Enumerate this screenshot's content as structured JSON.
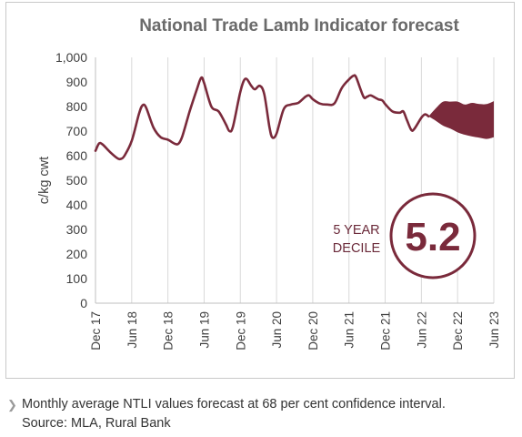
{
  "chart_data": {
    "type": "area",
    "title": "National Trade Lamb Indicator forecast",
    "ylabel": "c/kg cwt",
    "xlabel": "",
    "ylim": [
      0,
      1000
    ],
    "y_ticks": [
      "0",
      "100",
      "200",
      "300",
      "400",
      "500",
      "600",
      "700",
      "800",
      "900",
      "1,000"
    ],
    "x_ticks": [
      "Dec 17",
      "Jun 18",
      "Dec 18",
      "Jun 19",
      "Dec 19",
      "Jun 20",
      "Dec 20",
      "Jun 21",
      "Dec 21",
      "Jun 22",
      "Dec 22",
      "Jun 23"
    ],
    "grid": "vertical",
    "line_color": "#7a2a3b",
    "band_color": "#7a2a3b",
    "series": [
      {
        "values": [
          {
            "x": 0,
            "y": 620
          },
          {
            "x": 0.5,
            "y": 650
          },
          {
            "x": 1,
            "y": 645
          },
          {
            "x": 2,
            "y": 615
          },
          {
            "x": 3,
            "y": 590
          },
          {
            "x": 3.5,
            "y": 587
          },
          {
            "x": 4,
            "y": 600
          },
          {
            "x": 5,
            "y": 660
          },
          {
            "x": 6,
            "y": 770
          },
          {
            "x": 6.5,
            "y": 805
          },
          {
            "x": 7,
            "y": 795
          },
          {
            "x": 8,
            "y": 715
          },
          {
            "x": 9,
            "y": 675
          },
          {
            "x": 10,
            "y": 665
          },
          {
            "x": 11,
            "y": 648
          },
          {
            "x": 11.5,
            "y": 650
          },
          {
            "x": 12,
            "y": 680
          },
          {
            "x": 13,
            "y": 780
          },
          {
            "x": 14,
            "y": 870
          },
          {
            "x": 14.6,
            "y": 917
          },
          {
            "x": 15,
            "y": 895
          },
          {
            "x": 16,
            "y": 800
          },
          {
            "x": 17,
            "y": 780
          },
          {
            "x": 18,
            "y": 728
          },
          {
            "x": 18.5,
            "y": 700
          },
          {
            "x": 19,
            "y": 720
          },
          {
            "x": 20,
            "y": 860
          },
          {
            "x": 20.7,
            "y": 913
          },
          {
            "x": 21.5,
            "y": 885
          },
          {
            "x": 22,
            "y": 870
          },
          {
            "x": 22.7,
            "y": 884
          },
          {
            "x": 23.3,
            "y": 850
          },
          {
            "x": 24,
            "y": 720
          },
          {
            "x": 24.4,
            "y": 675
          },
          {
            "x": 25,
            "y": 690
          },
          {
            "x": 26,
            "y": 790
          },
          {
            "x": 27,
            "y": 808
          },
          {
            "x": 28,
            "y": 815
          },
          {
            "x": 29,
            "y": 840
          },
          {
            "x": 29.5,
            "y": 845
          },
          {
            "x": 30,
            "y": 830
          },
          {
            "x": 31,
            "y": 812
          },
          {
            "x": 32,
            "y": 808
          },
          {
            "x": 33,
            "y": 813
          },
          {
            "x": 34,
            "y": 875
          },
          {
            "x": 35,
            "y": 910
          },
          {
            "x": 35.6,
            "y": 925
          },
          {
            "x": 36,
            "y": 918
          },
          {
            "x": 37,
            "y": 840
          },
          {
            "x": 37.5,
            "y": 840
          },
          {
            "x": 38,
            "y": 845
          },
          {
            "x": 39,
            "y": 830
          },
          {
            "x": 39.6,
            "y": 825
          },
          {
            "x": 40,
            "y": 810
          },
          {
            "x": 41,
            "y": 780
          },
          {
            "x": 42,
            "y": 775
          },
          {
            "x": 42.5,
            "y": 780
          },
          {
            "x": 43,
            "y": 745
          },
          {
            "x": 43.6,
            "y": 705
          },
          {
            "x": 44,
            "y": 708
          },
          {
            "x": 45,
            "y": 755
          },
          {
            "x": 45.5,
            "y": 768
          },
          {
            "x": 46,
            "y": 760
          }
        ]
      }
    ],
    "forecast_band": {
      "upper": [
        {
          "x": 46,
          "y": 760
        },
        {
          "x": 47,
          "y": 793
        },
        {
          "x": 48,
          "y": 820
        },
        {
          "x": 49,
          "y": 820
        },
        {
          "x": 50,
          "y": 820
        },
        {
          "x": 51,
          "y": 808
        },
        {
          "x": 52,
          "y": 815
        },
        {
          "x": 53,
          "y": 810
        },
        {
          "x": 54,
          "y": 810
        },
        {
          "x": 55,
          "y": 822
        }
      ],
      "lower": [
        {
          "x": 46,
          "y": 760
        },
        {
          "x": 47,
          "y": 742
        },
        {
          "x": 48,
          "y": 722
        },
        {
          "x": 49,
          "y": 710
        },
        {
          "x": 50,
          "y": 695
        },
        {
          "x": 51,
          "y": 685
        },
        {
          "x": 52,
          "y": 678
        },
        {
          "x": 53,
          "y": 673
        },
        {
          "x": 54,
          "y": 668
        },
        {
          "x": 55,
          "y": 675
        }
      ]
    },
    "annotations": {
      "decile_label_line1": "5 YEAR",
      "decile_label_line2": "DECILE",
      "decile_value": "5.2"
    }
  },
  "footnote": {
    "line1": "Monthly average NTLI values forecast at 68 per cent confidence interval.",
    "line2": "Source: MLA, Rural Bank"
  }
}
